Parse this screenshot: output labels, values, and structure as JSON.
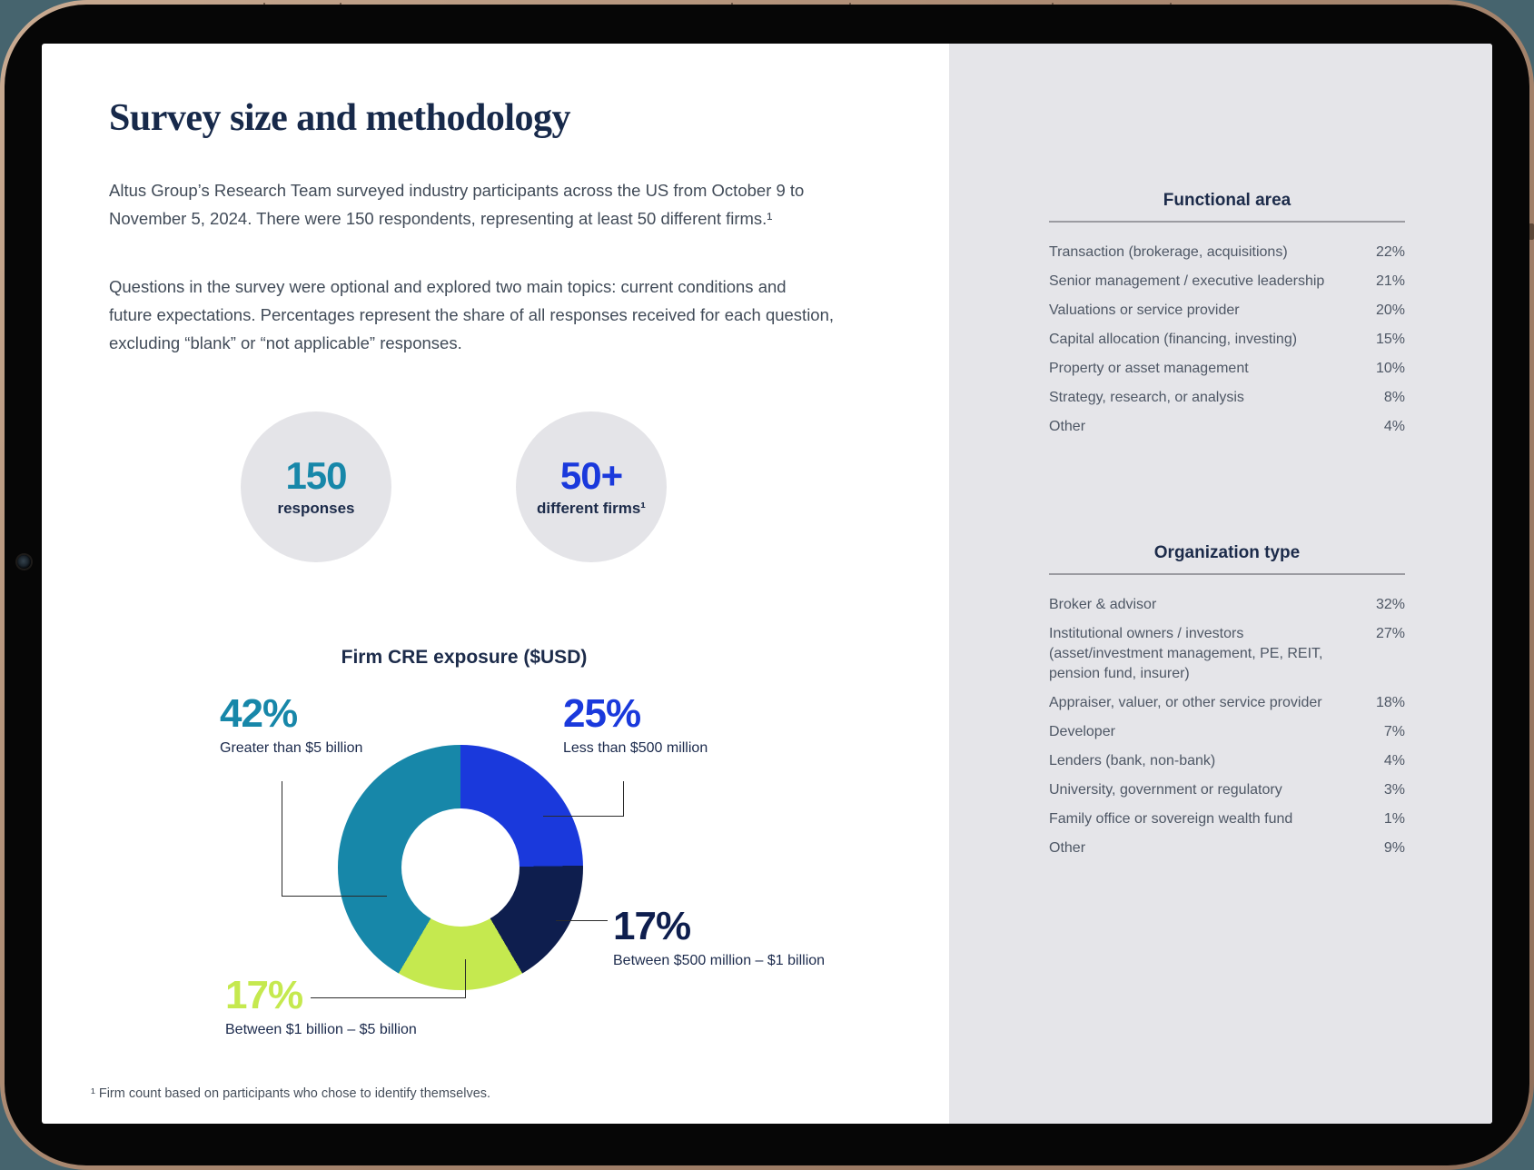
{
  "device": {
    "background": "#46646e",
    "rim_color": "#ab8a72",
    "bezel_color": "#060606",
    "panel_color": "#e5e5e9"
  },
  "page": {
    "title": "Survey size and methodology",
    "paragraphs": [
      [
        "Altus Group’s Research Team surveyed industry participants across the US from October 9 to",
        "November 5, 2024. There were 150 respondents, representing at least 50 different firms.¹"
      ],
      [
        "Questions in the survey were optional and explored two main topics: current conditions and",
        "future expectations. Percentages represent the share of all responses received for each question,",
        "excluding “blank” or “not applicable” responses."
      ]
    ],
    "footnote": "¹ Firm count based on participants who chose to identify themselves."
  },
  "stats": [
    {
      "value": "150",
      "label": "responses",
      "color": "#1787a9"
    },
    {
      "value": "50+",
      "label": "different firms¹",
      "color": "#1a39dc"
    }
  ],
  "chart_data": {
    "type": "pie",
    "donut": true,
    "title": "Firm CRE exposure ($USD)",
    "start_angle_deg": 0,
    "direction": "clockwise",
    "segments": [
      {
        "label": "Less than $500 million",
        "value": 25,
        "pct": "25%",
        "color": "#1a39dc"
      },
      {
        "label": "Between $500 million – $1 billion",
        "value": 17,
        "pct": "17%",
        "color": "#0e1e4e"
      },
      {
        "label": "Between $1 billion – $5 billion",
        "value": 17,
        "pct": "17%",
        "color": "#c5e94f"
      },
      {
        "label": "Greater than $5 billion",
        "value": 42,
        "pct": "42%",
        "color": "#1787a9"
      }
    ]
  },
  "tables": [
    {
      "title": "Functional area",
      "rows": [
        {
          "label": "Transaction (brokerage, acquisitions)",
          "pct": "22%"
        },
        {
          "label": "Senior management / executive leadership",
          "pct": "21%"
        },
        {
          "label": "Valuations or service provider",
          "pct": "20%"
        },
        {
          "label": "Capital allocation (financing, investing)",
          "pct": "15%"
        },
        {
          "label": "Property or asset management",
          "pct": "10%"
        },
        {
          "label": "Strategy, research, or analysis",
          "pct": "8%"
        },
        {
          "label": "Other",
          "pct": "4%"
        }
      ]
    },
    {
      "title": "Organization type",
      "rows": [
        {
          "label": "Broker & advisor",
          "pct": "32%"
        },
        {
          "label": "Institutional owners / investors (asset/investment management, PE, REIT, pension fund, insurer)",
          "pct": "27%"
        },
        {
          "label": "Appraiser, valuer, or other service provider",
          "pct": "18%"
        },
        {
          "label": "Developer",
          "pct": "7%"
        },
        {
          "label": "Lenders (bank, non-bank)",
          "pct": "4%"
        },
        {
          "label": "University, government or regulatory",
          "pct": "3%"
        },
        {
          "label": "Family office or sovereign wealth fund",
          "pct": "1%"
        },
        {
          "label": "Other",
          "pct": "9%"
        }
      ]
    }
  ]
}
